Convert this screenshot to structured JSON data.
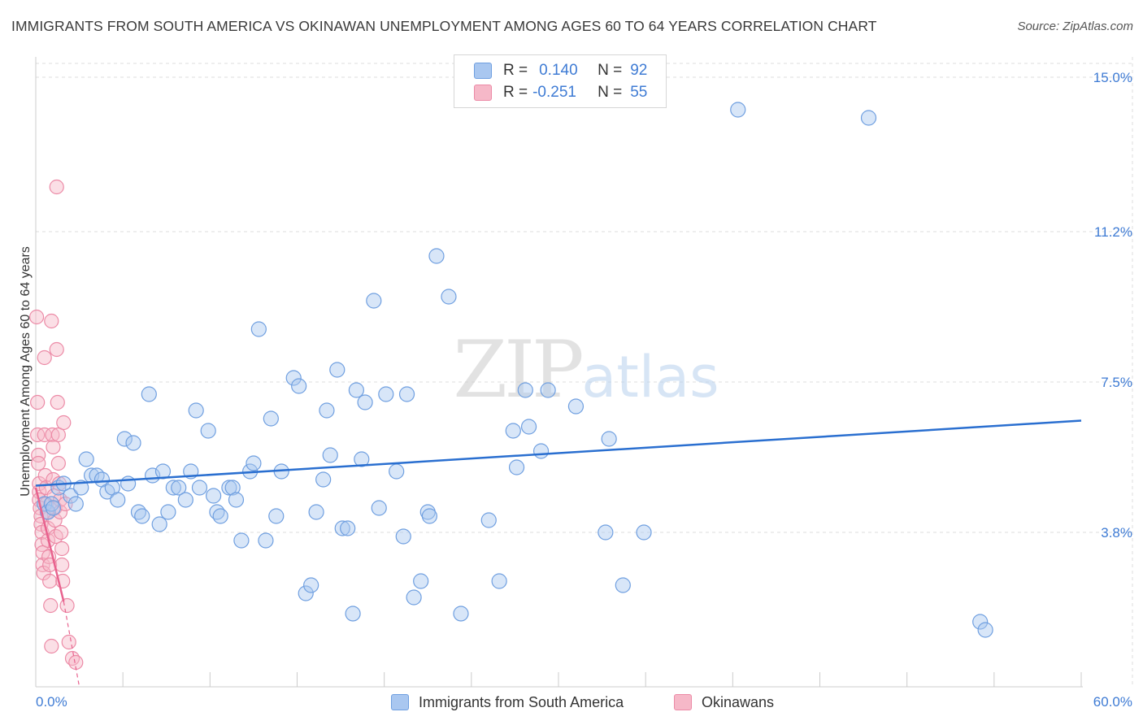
{
  "title": "IMMIGRANTS FROM SOUTH AMERICA VS OKINAWAN UNEMPLOYMENT AMONG AGES 60 TO 64 YEARS CORRELATION CHART",
  "source": "Source: ZipAtlas.com",
  "watermark": {
    "zip": "ZIP",
    "atlas": "atlas"
  },
  "legend": {
    "rows": [
      {
        "r_label": "R =",
        "r_value": "0.140",
        "n_label": "N =",
        "n_value": "92",
        "color": "#a9c7f0"
      },
      {
        "r_label": "R =",
        "r_value": "-0.251",
        "n_label": "N =",
        "n_value": "55",
        "color": "#f6b8c8"
      }
    ]
  },
  "bottom_legend": [
    {
      "label": "Immigrants from South America",
      "color": "#a9c7f0"
    },
    {
      "label": "Okinawans",
      "color": "#f6b8c8"
    }
  ],
  "colors": {
    "blue_fill": "#a9c7f0",
    "blue_stroke": "#6f9fe0",
    "blue_line": "#2a6fd0",
    "pink_fill": "#f6b8c8",
    "pink_stroke": "#ec8aa6",
    "pink_line": "#e8628e",
    "accent_text": "#3e7bd4",
    "grid": "#dedede"
  },
  "chart_data": {
    "type": "scatter",
    "title": "IMMIGRANTS FROM SOUTH AMERICA VS OKINAWAN UNEMPLOYMENT AMONG AGES 60 TO 64 YEARS CORRELATION CHART",
    "xlabel": "",
    "ylabel": "Unemployment Among Ages 60 to 64 years",
    "xlim": [
      0,
      60
    ],
    "ylim": [
      0,
      15.5
    ],
    "x_tick_labels": [
      "0.0%",
      "60.0%"
    ],
    "y_ticks": [
      3.8,
      7.5,
      11.2,
      15.0
    ],
    "y_tick_labels": [
      "3.8%",
      "7.5%",
      "11.2%",
      "15.0%"
    ],
    "grid": true,
    "series": [
      {
        "name": "Immigrants from South America",
        "points": [
          [
            0.5,
            4.5
          ],
          [
            0.7,
            4.3
          ],
          [
            0.9,
            4.5
          ],
          [
            1.0,
            4.4
          ],
          [
            1.3,
            4.9
          ],
          [
            1.6,
            5.0
          ],
          [
            2.0,
            4.7
          ],
          [
            2.3,
            4.5
          ],
          [
            2.6,
            4.9
          ],
          [
            2.9,
            5.6
          ],
          [
            3.2,
            5.2
          ],
          [
            3.5,
            5.2
          ],
          [
            3.8,
            5.1
          ],
          [
            4.1,
            4.8
          ],
          [
            4.4,
            4.9
          ],
          [
            4.7,
            4.6
          ],
          [
            5.1,
            6.1
          ],
          [
            5.3,
            5.0
          ],
          [
            5.6,
            6.0
          ],
          [
            5.9,
            4.3
          ],
          [
            6.1,
            4.2
          ],
          [
            6.5,
            7.2
          ],
          [
            6.7,
            5.2
          ],
          [
            7.1,
            4.0
          ],
          [
            7.3,
            5.3
          ],
          [
            7.6,
            4.3
          ],
          [
            7.9,
            4.9
          ],
          [
            8.2,
            4.9
          ],
          [
            8.6,
            4.6
          ],
          [
            8.9,
            5.3
          ],
          [
            9.2,
            6.8
          ],
          [
            9.4,
            4.9
          ],
          [
            9.9,
            6.3
          ],
          [
            10.2,
            4.7
          ],
          [
            10.4,
            4.3
          ],
          [
            10.6,
            4.2
          ],
          [
            11.1,
            4.9
          ],
          [
            11.3,
            4.9
          ],
          [
            11.5,
            4.6
          ],
          [
            11.8,
            3.6
          ],
          [
            12.3,
            5.3
          ],
          [
            12.5,
            5.5
          ],
          [
            12.8,
            8.8
          ],
          [
            13.2,
            3.6
          ],
          [
            13.5,
            6.6
          ],
          [
            13.8,
            4.2
          ],
          [
            14.1,
            5.3
          ],
          [
            14.8,
            7.6
          ],
          [
            15.1,
            7.4
          ],
          [
            15.5,
            2.3
          ],
          [
            15.8,
            2.5
          ],
          [
            16.1,
            4.3
          ],
          [
            16.5,
            5.1
          ],
          [
            16.7,
            6.8
          ],
          [
            16.9,
            5.7
          ],
          [
            17.3,
            7.8
          ],
          [
            17.6,
            3.9
          ],
          [
            17.9,
            3.9
          ],
          [
            18.2,
            1.8
          ],
          [
            18.4,
            7.3
          ],
          [
            18.7,
            5.6
          ],
          [
            18.9,
            7.0
          ],
          [
            19.4,
            9.5
          ],
          [
            19.7,
            4.4
          ],
          [
            20.1,
            7.2
          ],
          [
            20.7,
            5.3
          ],
          [
            21.1,
            3.7
          ],
          [
            21.3,
            7.2
          ],
          [
            21.7,
            2.2
          ],
          [
            22.1,
            2.6
          ],
          [
            22.5,
            4.3
          ],
          [
            22.6,
            4.2
          ],
          [
            23.0,
            10.6
          ],
          [
            23.7,
            9.6
          ],
          [
            24.4,
            1.8
          ],
          [
            26.0,
            4.1
          ],
          [
            26.6,
            2.6
          ],
          [
            27.4,
            6.3
          ],
          [
            27.6,
            5.4
          ],
          [
            28.1,
            7.3
          ],
          [
            28.3,
            6.4
          ],
          [
            29.0,
            5.8
          ],
          [
            29.4,
            7.3
          ],
          [
            31.0,
            6.9
          ],
          [
            32.7,
            3.8
          ],
          [
            32.9,
            6.1
          ],
          [
            33.7,
            2.5
          ],
          [
            34.9,
            3.8
          ],
          [
            40.3,
            14.2
          ],
          [
            47.8,
            14.0
          ],
          [
            54.2,
            1.6
          ],
          [
            54.5,
            1.4
          ]
        ],
        "trend": {
          "x": [
            0,
            60
          ],
          "y": [
            4.95,
            6.55
          ]
        }
      },
      {
        "name": "Okinawans",
        "points": [
          [
            0.05,
            9.1
          ],
          [
            0.1,
            7.0
          ],
          [
            0.1,
            6.2
          ],
          [
            0.15,
            5.7
          ],
          [
            0.15,
            5.5
          ],
          [
            0.2,
            5.0
          ],
          [
            0.2,
            4.8
          ],
          [
            0.2,
            4.6
          ],
          [
            0.25,
            4.4
          ],
          [
            0.3,
            4.2
          ],
          [
            0.3,
            4.0
          ],
          [
            0.35,
            3.8
          ],
          [
            0.35,
            3.5
          ],
          [
            0.4,
            3.3
          ],
          [
            0.4,
            3.0
          ],
          [
            0.45,
            2.8
          ],
          [
            0.5,
            8.1
          ],
          [
            0.5,
            6.2
          ],
          [
            0.55,
            5.2
          ],
          [
            0.6,
            4.9
          ],
          [
            0.6,
            4.5
          ],
          [
            0.65,
            4.3
          ],
          [
            0.7,
            3.9
          ],
          [
            0.7,
            3.6
          ],
          [
            0.75,
            3.2
          ],
          [
            0.8,
            3.0
          ],
          [
            0.8,
            2.6
          ],
          [
            0.85,
            2.0
          ],
          [
            0.9,
            1.0
          ],
          [
            0.9,
            9.0
          ],
          [
            0.95,
            6.2
          ],
          [
            1.0,
            5.9
          ],
          [
            1.0,
            5.1
          ],
          [
            1.05,
            4.7
          ],
          [
            1.1,
            4.4
          ],
          [
            1.1,
            4.1
          ],
          [
            1.15,
            3.7
          ],
          [
            1.2,
            12.3
          ],
          [
            1.2,
            8.3
          ],
          [
            1.25,
            7.0
          ],
          [
            1.3,
            6.2
          ],
          [
            1.3,
            5.5
          ],
          [
            1.35,
            5.0
          ],
          [
            1.4,
            4.6
          ],
          [
            1.4,
            4.3
          ],
          [
            1.45,
            3.8
          ],
          [
            1.5,
            3.4
          ],
          [
            1.5,
            3.0
          ],
          [
            1.55,
            2.6
          ],
          [
            1.6,
            6.5
          ],
          [
            1.7,
            4.5
          ],
          [
            1.8,
            2.0
          ],
          [
            1.9,
            1.1
          ],
          [
            2.1,
            0.7
          ],
          [
            2.3,
            0.6
          ]
        ],
        "trend": {
          "x": [
            0.0,
            1.6
          ],
          "y": [
            4.9,
            2.1
          ]
        },
        "trend_extension": {
          "x": [
            1.6,
            2.5
          ],
          "y": [
            2.1,
            0.0
          ]
        }
      }
    ]
  }
}
